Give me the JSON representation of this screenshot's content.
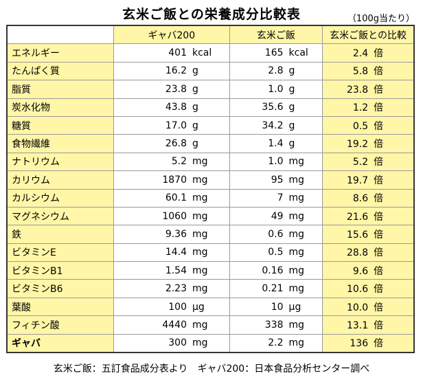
{
  "title": "玄米ご飯との栄養成分比較表",
  "unit_note": "（100g当たり）",
  "headers": [
    "",
    "ギャバ200",
    "玄米ご飯",
    "玄米ご飯との比較"
  ],
  "rows": [
    {
      "label": "エネルギー",
      "gaba": [
        "401",
        "kcal"
      ],
      "rice": [
        "165",
        "kcal"
      ],
      "ratio": [
        "2.4",
        "倍"
      ]
    },
    {
      "label": "たんぱく質",
      "gaba": [
        "16.2",
        "g"
      ],
      "rice": [
        "2.8",
        "g"
      ],
      "ratio": [
        "5.8",
        "倍"
      ]
    },
    {
      "label": "脂質",
      "gaba": [
        "23.8",
        "g"
      ],
      "rice": [
        "1.0",
        "g"
      ],
      "ratio": [
        "23.8",
        "倍"
      ]
    },
    {
      "label": "炭水化物",
      "gaba": [
        "43.8",
        "g"
      ],
      "rice": [
        "35.6",
        "g"
      ],
      "ratio": [
        "1.2",
        "倍"
      ]
    },
    {
      "label": "糖質",
      "gaba": [
        "17.0",
        "g"
      ],
      "rice": [
        "34.2",
        "g"
      ],
      "ratio": [
        "0.5",
        "倍"
      ]
    },
    {
      "label": "食物繊維",
      "gaba": [
        "26.8",
        "g"
      ],
      "rice": [
        "1.4",
        "g"
      ],
      "ratio": [
        "19.2",
        "倍"
      ]
    },
    {
      "label": "ナトリウム",
      "gaba": [
        "5.2",
        "mg"
      ],
      "rice": [
        "1.0",
        "mg"
      ],
      "ratio": [
        "5.2",
        "倍"
      ]
    },
    {
      "label": "カリウム",
      "gaba": [
        "1870",
        "mg"
      ],
      "rice": [
        "95",
        "mg"
      ],
      "ratio": [
        "19.7",
        "倍"
      ]
    },
    {
      "label": "カルシウム",
      "gaba": [
        "60.1",
        "mg"
      ],
      "rice": [
        "7",
        "mg"
      ],
      "ratio": [
        "8.6",
        "倍"
      ]
    },
    {
      "label": "マグネシウム",
      "gaba": [
        "1060",
        "mg"
      ],
      "rice": [
        "49",
        "mg"
      ],
      "ratio": [
        "21.6",
        "倍"
      ]
    },
    {
      "label": "鉄",
      "gaba": [
        "9.36",
        "mg"
      ],
      "rice": [
        "0.6",
        "mg"
      ],
      "ratio": [
        "15.6",
        "倍"
      ]
    },
    {
      "label": "ビタミンE",
      "gaba": [
        "14.4",
        "mg"
      ],
      "rice": [
        "0.5",
        "mg"
      ],
      "ratio": [
        "28.8",
        "倍"
      ]
    },
    {
      "label": "ビタミンB1",
      "gaba": [
        "1.54",
        "mg"
      ],
      "rice": [
        "0.16",
        "mg"
      ],
      "ratio": [
        "9.6",
        "倍"
      ]
    },
    {
      "label": "ビタミンB6",
      "gaba": [
        "2.23",
        "mg"
      ],
      "rice": [
        "0.21",
        "mg"
      ],
      "ratio": [
        "10.6",
        "倍"
      ]
    },
    {
      "label": "葉酸",
      "gaba": [
        "100",
        "μg"
      ],
      "rice": [
        "10",
        "μg"
      ],
      "ratio": [
        "10.0",
        "倍"
      ]
    },
    {
      "label": "フィチン酸",
      "gaba": [
        "4440",
        "mg"
      ],
      "rice": [
        "338",
        "mg"
      ],
      "ratio": [
        "13.1",
        "倍"
      ]
    },
    {
      "label": "ギャバ",
      "bold": true,
      "gaba": [
        "300",
        "mg"
      ],
      "rice": [
        "2.2",
        "mg"
      ],
      "ratio": [
        "136",
        "倍"
      ]
    }
  ],
  "footnote": "玄米ご飯：五訂食品成分表より　ギャバ200：日本食品分析センター調べ",
  "colors": {
    "highlight": "#fff6a8",
    "border": "#333333",
    "grid": "#999999"
  }
}
